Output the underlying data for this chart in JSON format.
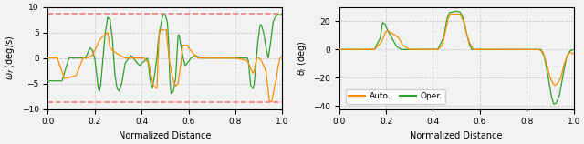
{
  "fig_width": 6.4,
  "fig_height": 1.58,
  "dpi": 100,
  "background_color": "#f2f2f2",
  "orange_color": "#ff8c00",
  "green_color": "#2ca02c",
  "dashed_color": "#f08080",
  "left_ylabel": "$\\omega_f$ (deg/s)",
  "right_ylabel": "$\\theta_i$ (deg)",
  "xlabel": "Normalized Distance",
  "left_ylim": [
    -10,
    10
  ],
  "right_ylim": [
    -42,
    30
  ],
  "xlim": [
    0.0,
    1.0
  ],
  "left_yticks": [
    -10,
    -5,
    0,
    5,
    10
  ],
  "right_yticks": [
    -40,
    -20,
    0,
    20
  ],
  "xticks": [
    0.0,
    0.2,
    0.4,
    0.6,
    0.8,
    1.0
  ],
  "dashed_upper": 8.7,
  "dashed_lower": -8.7,
  "legend_labels": [
    "Auto.",
    "Oper."
  ],
  "legend_colors": [
    "#ff8c00",
    "#2ca02c"
  ]
}
